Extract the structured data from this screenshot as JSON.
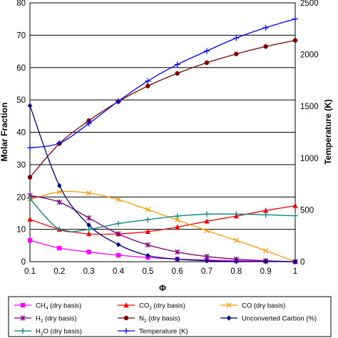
{
  "chart_data": {
    "type": "line",
    "xlabel": "Φ",
    "ylabel": "Molar Fraction",
    "y2label": "Temperature (K)",
    "x_ticks": [
      "0.1",
      "0.2",
      "0.3",
      "0.4",
      "0.5",
      "0.6",
      "0.7",
      "0.8",
      "0.9",
      "1"
    ],
    "y_ticks": [
      "0",
      "10",
      "20",
      "30",
      "40",
      "50",
      "60",
      "70",
      "80"
    ],
    "y2_ticks": [
      "0",
      "500",
      "1000",
      "1500",
      "2000",
      "2500"
    ],
    "xlim": [
      0.1,
      1.0
    ],
    "ylim": [
      0,
      80
    ],
    "y2lim": [
      0,
      2500
    ],
    "grid": "horizontal",
    "legend_position": "bottom",
    "series": [
      {
        "name": "CH4 (dry basis)",
        "label_main": "CH",
        "label_sub": "4",
        "label_rest": " (dry basis)",
        "axis": "left",
        "color": "#ff00ff",
        "marker": "square",
        "x": [
          0.1,
          0.2,
          0.3,
          0.4,
          0.5,
          0.6,
          0.7,
          0.8,
          0.9,
          1.0
        ],
        "y": [
          6.6,
          4.2,
          3.0,
          2.0,
          1.3,
          0.8,
          0.5,
          0.3,
          0.15,
          0.0
        ]
      },
      {
        "name": "CO2 (dry basis)",
        "label_main": "CO",
        "label_sub": "2",
        "label_rest": " (dry basis)",
        "axis": "left",
        "color": "#ff0000",
        "marker": "triangle",
        "x": [
          0.1,
          0.2,
          0.3,
          0.4,
          0.5,
          0.6,
          0.7,
          0.8,
          0.9,
          1.0
        ],
        "y": [
          13.1,
          10.0,
          8.6,
          8.6,
          9.3,
          10.7,
          12.5,
          14.1,
          15.8,
          17.3
        ]
      },
      {
        "name": "CO (dry basis)",
        "label_main": "CO",
        "label_sub": "",
        "label_rest": " (dry basis)",
        "axis": "left",
        "color": "#ff9900",
        "marker": "x",
        "x": [
          0.1,
          0.2,
          0.3,
          0.4,
          0.5,
          0.6,
          0.7,
          0.8,
          0.9,
          1.0
        ],
        "y": [
          19.2,
          21.6,
          21.2,
          19.2,
          16.1,
          12.9,
          9.6,
          6.6,
          3.4,
          0.0
        ]
      },
      {
        "name": "H2 (dry basis)",
        "label_main": "H",
        "label_sub": "2",
        "label_rest": " (dry basis)",
        "axis": "left",
        "color": "#800080",
        "marker": "star",
        "x": [
          0.1,
          0.2,
          0.3,
          0.4,
          0.5,
          0.6,
          0.7,
          0.8,
          0.9,
          1.0
        ],
        "y": [
          20.5,
          18.4,
          13.5,
          8.6,
          5.2,
          3.0,
          1.6,
          0.8,
          0.3,
          0.0
        ]
      },
      {
        "name": "N2 (dry basis)",
        "label_main": "N",
        "label_sub": "2",
        "label_rest": " (dry basis)",
        "axis": "left",
        "color": "#800000",
        "marker": "circle",
        "x": [
          0.1,
          0.2,
          0.3,
          0.4,
          0.5,
          0.6,
          0.7,
          0.8,
          0.9,
          1.0
        ],
        "y": [
          26.1,
          36.5,
          43.6,
          49.5,
          54.3,
          58.2,
          61.5,
          64.2,
          66.5,
          68.4
        ]
      },
      {
        "name": "Unconverted Carbon (%)",
        "label_main": "Unconverted Carbon (%)",
        "label_sub": "",
        "label_rest": "",
        "axis": "left",
        "color": "#000080",
        "marker": "diamond",
        "x": [
          0.1,
          0.2,
          0.3,
          0.4,
          0.5,
          0.6,
          0.7,
          0.8,
          0.9,
          1.0
        ],
        "y": [
          48.2,
          23.5,
          11.3,
          5.3,
          1.9,
          0.8,
          0.3,
          0.1,
          0.05,
          0.0
        ]
      },
      {
        "name": "H2O (dry basis)",
        "label_main": "H",
        "label_sub": "2",
        "label_rest": "O (dry basis)",
        "axis": "left",
        "color": "#008080",
        "marker": "plus",
        "x": [
          0.1,
          0.2,
          0.3,
          0.4,
          0.5,
          0.6,
          0.7,
          0.8,
          0.9,
          1.0
        ],
        "y": [
          19.5,
          10.0,
          10.0,
          11.8,
          13.0,
          14.1,
          14.7,
          14.7,
          14.5,
          14.2
        ]
      },
      {
        "name": "Temperature (K)",
        "label_main": "Temperature (K)",
        "label_sub": "",
        "label_rest": "",
        "axis": "right",
        "color": "#0000ff",
        "marker": "plus",
        "x": [
          0.1,
          0.2,
          0.3,
          0.4,
          0.5,
          0.6,
          0.7,
          0.8,
          0.9,
          1.0
        ],
        "y": [
          1100,
          1145,
          1335,
          1550,
          1745,
          1905,
          2035,
          2160,
          2260,
          2345
        ]
      }
    ]
  }
}
